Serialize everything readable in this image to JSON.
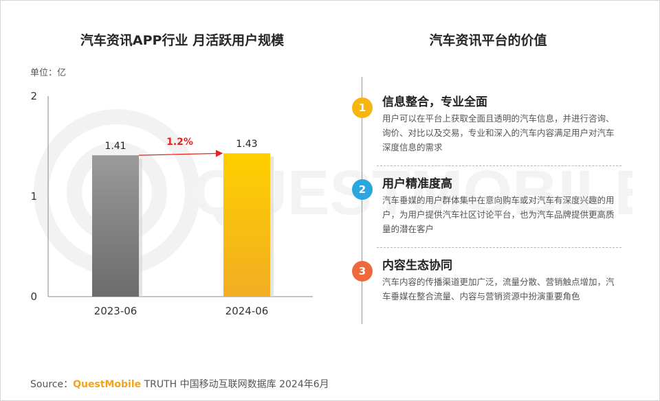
{
  "left_title": "汽车资讯APP行业 月活跃用户规模",
  "unit": "单位：亿",
  "right_title": "汽车资讯平台的价值",
  "watermark_text": "QUESTMOBILE",
  "chart_data": {
    "type": "bar",
    "title": "汽车资讯APP行业 月活跃用户规模",
    "categories": [
      "2023-06",
      "2024-06"
    ],
    "values": [
      1.41,
      1.43
    ],
    "value_labels": [
      "1.41",
      "1.43"
    ],
    "ylim": [
      0,
      2
    ],
    "yticks": [
      0,
      1,
      2
    ],
    "ytick_labels": [
      "0",
      "1",
      "2"
    ],
    "bar_colors": [
      "#8f8f8f",
      "#f6b91c"
    ],
    "growth_label": "1.2%",
    "growth_color": "#e8231f",
    "grid": false
  },
  "items": [
    {
      "num": "1",
      "title": "信息整合，专业全面",
      "body": "用户可以在平台上获取全面且透明的汽车信息，并进行咨询、询价、对比以及交易，专业和深入的汽车内容满足用户对汽车深度信息的需求",
      "color": "#f7b50f"
    },
    {
      "num": "2",
      "title": "用户精准度高",
      "body": "汽车垂媒的用户群体集中在意向购车或对汽车有深度兴趣的用户，为用户提供汽车社区讨论平台，也为汽车品牌提供更高质量的潜在客户",
      "color": "#2ba6df"
    },
    {
      "num": "3",
      "title": "内容生态协同",
      "body": "汽车内容的传播渠道更加广泛，流量分散、营销触点增加，汽车垂媒在整合流量、内容与营销资源中扮演重要角色",
      "color": "#ee6a3d"
    }
  ],
  "source": {
    "prefix": "Source：",
    "brand": "QuestMobile",
    "suffix": " TRUTH 中国移动互联网数据库 2024年6月"
  }
}
